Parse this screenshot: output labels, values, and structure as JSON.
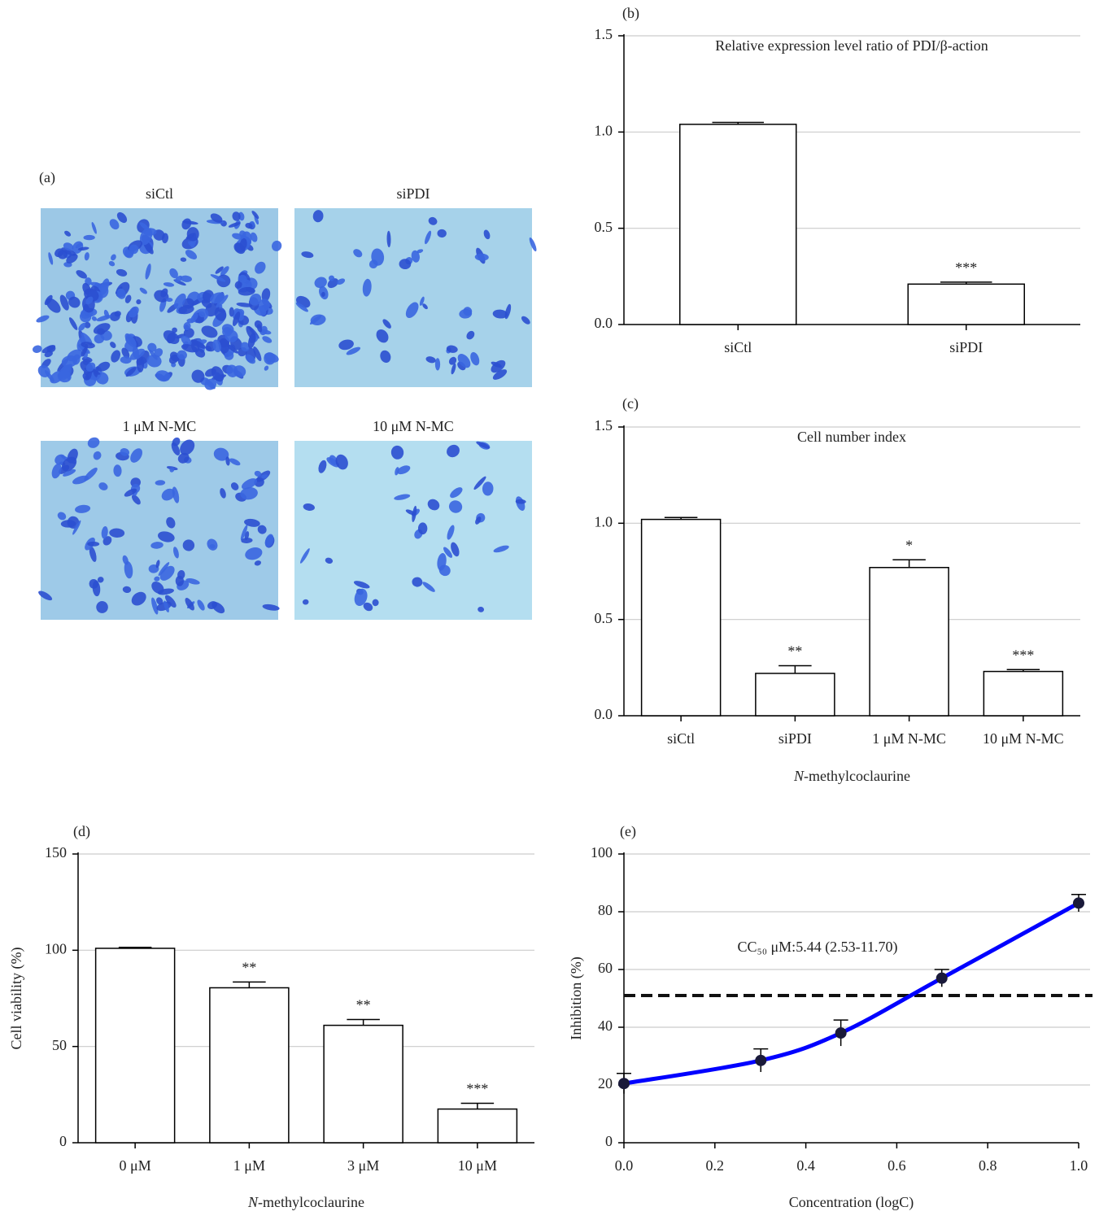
{
  "panel_a": {
    "label": "(a)",
    "images": [
      {
        "caption": "siCtl"
      },
      {
        "caption": "siPDI"
      },
      {
        "caption": "1 μM N-MC"
      },
      {
        "caption": "10 μM N-MC"
      }
    ]
  },
  "chart_data": [
    {
      "type": "bar",
      "label": "(b)",
      "title": "Relative expression level ratio of  PDI/β-action",
      "categories": [
        "siCtl",
        "siPDI"
      ],
      "values": [
        1.04,
        0.21
      ],
      "errors": [
        0.01,
        0.01
      ],
      "significance": [
        null,
        "***"
      ],
      "color": "#ffffff",
      "ylim": [
        0,
        1.5
      ],
      "yticks": [
        {
          "value": 0,
          "label": "0.0"
        },
        {
          "value": 0.5,
          "label": "0.5"
        },
        {
          "value": 1,
          "label": "1.0"
        },
        {
          "value": 1.5,
          "label": "1.5"
        }
      ],
      "grid": true
    },
    {
      "type": "bar",
      "label": "(c)",
      "title": "Cell number index",
      "x_label": "N-methylcoclaurine",
      "categories": [
        "siCtl",
        "siPDI",
        "1 μM N-MC",
        "10 μM N-MC"
      ],
      "values": [
        1.02,
        0.22,
        0.77,
        0.23
      ],
      "errors": [
        0.01,
        0.04,
        0.04,
        0.01
      ],
      "significance": [
        null,
        "**",
        "*",
        "***"
      ],
      "color": "#ffffff",
      "ylim": [
        0,
        1.5
      ],
      "yticks": [
        {
          "value": 0,
          "label": "0.0"
        },
        {
          "value": 0.5,
          "label": "0.5"
        },
        {
          "value": 1,
          "label": "1.0"
        },
        {
          "value": 1.5,
          "label": "1.5"
        }
      ],
      "grid": true
    },
    {
      "type": "bar",
      "label": "(d)",
      "x_label": "N-methylcoclaurine",
      "y_label": "Cell viability (%)",
      "categories": [
        "0 μM",
        "1 μM",
        "3 μM",
        "10 μM"
      ],
      "values": [
        101,
        80.5,
        61,
        17.5
      ],
      "errors": [
        0.5,
        3,
        3,
        3
      ],
      "significance": [
        null,
        "**",
        "**",
        "***"
      ],
      "color": "#ffffff",
      "ylim": [
        0,
        150
      ],
      "yticks": [
        0,
        50,
        100,
        150
      ],
      "grid": true
    },
    {
      "type": "line",
      "label": "(e)",
      "x_label": "Concentration (logC)",
      "y_label": "Inhibition (%)",
      "annotation": "CC₅₀ μM:5.44 (2.53-11.70)",
      "x": [
        0,
        0.301,
        0.477,
        0.699,
        1.0
      ],
      "values": [
        20.5,
        28.5,
        38,
        57,
        83
      ],
      "errors": [
        3.5,
        4,
        4.5,
        3,
        3
      ],
      "color": "#0000ff",
      "marker_color": "#1a1a3a",
      "reference_line": 51,
      "xlim": [
        0,
        1
      ],
      "ylim": [
        0,
        100
      ],
      "xticks": [
        {
          "value": 0,
          "label": "0.0"
        },
        {
          "value": 0.2,
          "label": "0.2"
        },
        {
          "value": 0.4,
          "label": "0.4"
        },
        {
          "value": 0.6,
          "label": "0.6"
        },
        {
          "value": 0.8,
          "label": "0.8"
        },
        {
          "value": 1,
          "label": "1.0"
        }
      ],
      "yticks": [
        0,
        20,
        40,
        60,
        80,
        100
      ],
      "grid": true
    }
  ]
}
